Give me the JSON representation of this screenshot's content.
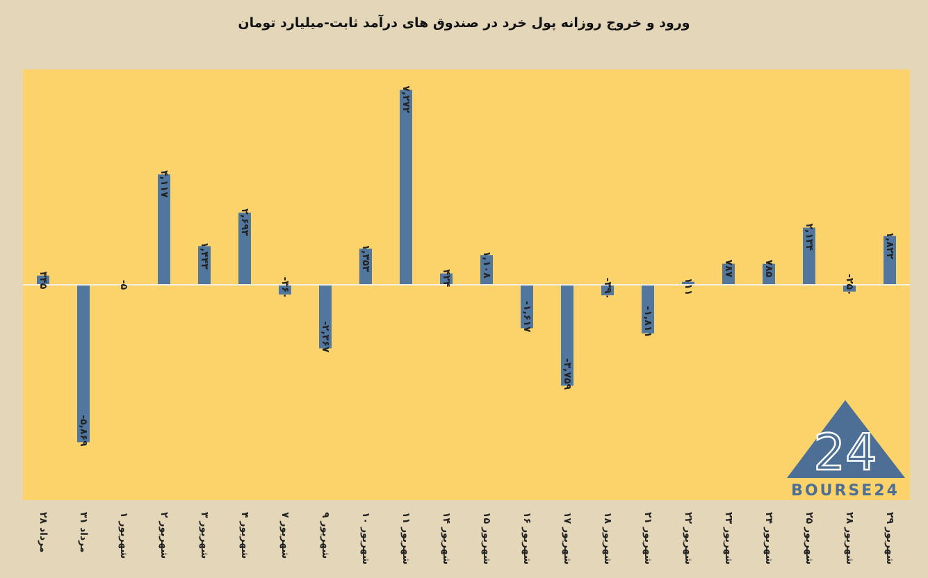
{
  "colors": {
    "background": "#e3d6b9",
    "plot_area": "#fcd36b",
    "bar": "#52779f",
    "zero_line": "#f3efe3"
  },
  "logo": {
    "number": "24",
    "text": "BOURSE24"
  },
  "chart_data": {
    "type": "bar",
    "title": "ورود و خروج روزانه پول خرد در صندوق های درآمد ثابت-میلیارد تومان",
    "categories": [
      "۲۸ مرداد",
      "۳۱ مرداد",
      "۱ شهریور",
      "۲ شهریور",
      "۳ شهریور",
      "۴ شهریور",
      "۷ شهریور",
      "۹ شهریور",
      "۱۰ شهریور",
      "۱۱ شهریور",
      "۱۴ شهریور",
      "۱۵ شهریور",
      "۱۶ شهریور",
      "۱۷ شهریور",
      "۱۸ شهریور",
      "۲۱ شهریور",
      "۲۲ شهریور",
      "۲۳ شهریور",
      "۲۴ شهریور",
      "۲۵ شهریور",
      "۲۸ شهریور",
      "۲۹ شهریور"
    ],
    "values": [
      345,
      -5869,
      -5,
      4117,
      1443,
      2693,
      -360,
      -2367,
      1353,
      7272,
      424,
      1108,
      -1617,
      -3759,
      -390,
      -1811,
      111,
      787,
      785,
      2134,
      -250,
      1822
    ],
    "value_labels": [
      "۳۴۵",
      "-۵,۸۶۹",
      "-۵",
      "۴,۱۱۷",
      "۱,۴۴۳",
      "۲,۶۹۳",
      "-۳۶۰",
      "-۲,۳۶۷",
      "۱,۳۵۳",
      "۷,۲۷۲",
      "۴۲۴",
      "۱,۱۰۸",
      "-۱,۶۱۷",
      "-۳,۷۵۹",
      "-۳۹۰",
      "-۱,۸۱۱",
      "۱۱۱",
      "۷۸۷",
      "۷۸۵",
      "۲,۱۳۴",
      "-۲۵۰",
      "۱,۸۲۲"
    ],
    "ylim": [
      -8000,
      8000
    ],
    "grid": false,
    "legend": false
  }
}
